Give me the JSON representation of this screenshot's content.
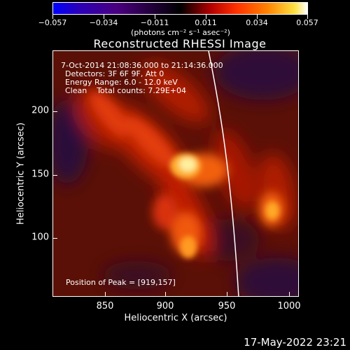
{
  "colorbar": {
    "tick_labels": [
      "−0.057",
      "−0.034",
      "−0.011",
      "0.011",
      "0.034",
      "0.057"
    ],
    "units": "(photons cm⁻² s⁻¹ asec⁻²)"
  },
  "plot": {
    "title": "Reconstructed RHESSI Image",
    "annotations": {
      "time_range": "7-Oct-2014 21:08:36.000 to 21:14:36.000",
      "detectors": "Detectors: 3F 6F 9F, Att 0",
      "energy_range": "Energy Range: 6.0 - 12.0 keV",
      "clean_counts": "Clean    Total counts: 7.29E+04",
      "peak_position": "Position of Peak = [919,157]"
    },
    "xlabel": "Heliocentric X (arcsec)",
    "ylabel": "Heliocentric Y (arcsec)",
    "x_ticks": [
      "850",
      "900",
      "950",
      "1000"
    ],
    "y_ticks": [
      "200",
      "150",
      "100"
    ]
  },
  "footer": {
    "timestamp": "17-May-2022 23:21"
  },
  "colors": {
    "background": "#000000",
    "text": "#ffffff"
  }
}
